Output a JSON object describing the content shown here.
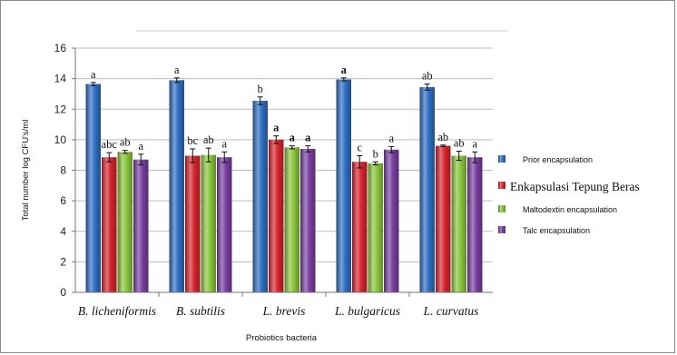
{
  "chart_data": {
    "type": "bar",
    "ylabel": "Total number log CFU's/ml",
    "xlabel": "Probiotics bacteria",
    "ylim": [
      0,
      16
    ],
    "yticks": [
      0,
      2,
      4,
      6,
      8,
      10,
      12,
      14,
      16
    ],
    "grid": true,
    "legend_position": "right",
    "categories": [
      "B. licheniformis",
      "B. subtilis",
      "L. brevis",
      "L. bulgaricus",
      "L. curvatus"
    ],
    "series": [
      {
        "name": "Prior encapsulation",
        "color": "#2f6fc4",
        "values": [
          13.65,
          13.9,
          12.55,
          13.95,
          13.45
        ],
        "errors": [
          0.1,
          0.15,
          0.25,
          0.1,
          0.2
        ],
        "labels": [
          "a",
          "a",
          "b",
          "a",
          "ab"
        ]
      },
      {
        "name": "Enkapsulasi Tepung Beras",
        "color": "#d8262e",
        "values": [
          8.85,
          8.95,
          10.0,
          8.55,
          9.6
        ],
        "errors": [
          0.3,
          0.45,
          0.25,
          0.4,
          0.05
        ],
        "labels": [
          "abc",
          "bc",
          "a",
          "c",
          "ab"
        ]
      },
      {
        "name": "Maltodextin encapsulation",
        "color": "#8cc63e",
        "values": [
          9.2,
          9.0,
          9.5,
          8.45,
          8.95
        ],
        "errors": [
          0.1,
          0.45,
          0.1,
          0.1,
          0.3
        ],
        "labels": [
          "ab",
          "ab",
          "a",
          "b",
          "ab"
        ]
      },
      {
        "name": "Talc encapsulation",
        "color": "#7a3fa1",
        "values": [
          8.7,
          8.85,
          9.4,
          9.35,
          8.85
        ],
        "errors": [
          0.35,
          0.35,
          0.2,
          0.2,
          0.35
        ],
        "labels": [
          "a",
          "a",
          "a",
          "a",
          "a"
        ]
      }
    ]
  }
}
